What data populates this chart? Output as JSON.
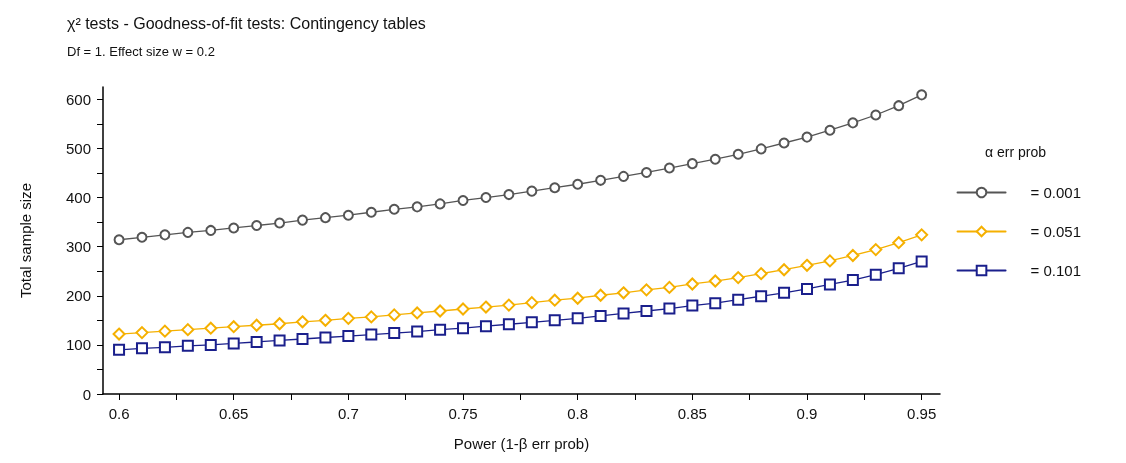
{
  "chart_data": {
    "type": "line",
    "title": "χ² tests - Goodness-of-fit tests: Contingency tables",
    "subtitle": "Df = 1. Effect size w = 0.2",
    "xlabel": "Power (1-β err prob)",
    "ylabel": "Total sample size",
    "legend_title": "α err prob",
    "legend": "right",
    "grid": false,
    "line_style": "solid",
    "x": [
      0.6,
      0.61,
      0.62,
      0.63,
      0.64,
      0.65,
      0.66,
      0.67,
      0.68,
      0.69,
      0.7,
      0.71,
      0.72,
      0.73,
      0.74,
      0.75,
      0.76,
      0.77,
      0.78,
      0.79,
      0.8,
      0.81,
      0.82,
      0.83,
      0.84,
      0.85,
      0.86,
      0.87,
      0.88,
      0.89,
      0.9,
      0.91,
      0.92,
      0.93,
      0.94,
      0.95
    ],
    "xlim": [
      0.593,
      0.958
    ],
    "xticks": [
      0.6,
      {
        "value": 0.625,
        "label": null
      },
      0.65,
      {
        "value": 0.675,
        "label": null
      },
      0.7,
      {
        "value": 0.725,
        "label": null
      },
      0.75,
      {
        "value": 0.775,
        "label": null
      },
      0.8,
      {
        "value": 0.825,
        "label": null
      },
      0.85,
      {
        "value": 0.875,
        "label": null
      },
      0.9,
      {
        "value": 0.925,
        "label": null
      },
      0.95
    ],
    "ylim": [
      0,
      625
    ],
    "yticks": [
      0,
      {
        "value": 50,
        "label": null
      },
      100,
      {
        "value": 150,
        "label": null
      },
      200,
      {
        "value": 250,
        "label": null
      },
      300,
      {
        "value": 350,
        "label": null
      },
      400,
      {
        "value": 450,
        "label": null
      },
      500,
      {
        "value": 550,
        "label": null
      },
      600
    ],
    "series": [
      {
        "name": "= 0.001",
        "color": "#555555",
        "marker": "circle",
        "values": [
          314,
          319,
          324,
          329,
          333,
          338,
          343,
          348,
          354,
          359,
          364,
          370,
          376,
          381,
          387,
          394,
          400,
          406,
          413,
          420,
          427,
          435,
          443,
          451,
          460,
          469,
          478,
          488,
          499,
          511,
          523,
          537,
          552,
          568,
          587,
          609
        ]
      },
      {
        "name": "= 0.051",
        "color": "#f5b000",
        "marker": "diamond",
        "values": [
          122,
          125,
          128,
          131,
          134,
          137,
          140,
          143,
          147,
          150,
          154,
          157,
          161,
          165,
          169,
          173,
          177,
          181,
          186,
          191,
          195,
          201,
          206,
          212,
          217,
          224,
          230,
          237,
          245,
          253,
          262,
          271,
          282,
          294,
          308,
          324
        ]
      },
      {
        "name": "= 0.101",
        "color": "#1a1f8c",
        "marker": "square",
        "values": [
          90,
          93,
          95,
          98,
          100,
          103,
          106,
          109,
          112,
          115,
          118,
          121,
          124,
          127,
          131,
          134,
          138,
          142,
          146,
          150,
          154,
          159,
          164,
          169,
          174,
          180,
          185,
          192,
          199,
          206,
          214,
          223,
          232,
          243,
          256,
          270
        ]
      }
    ]
  }
}
